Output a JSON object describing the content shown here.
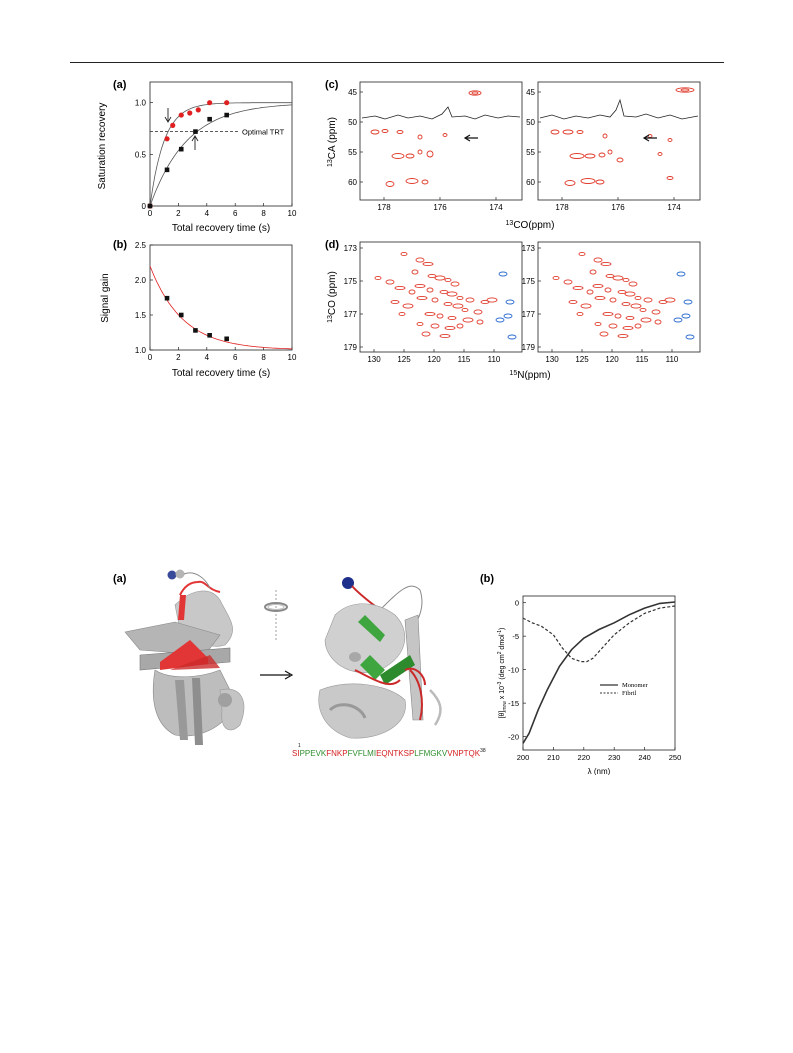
{
  "figure1": {
    "panel_a": {
      "label": "(a)",
      "ylabel": "Saturation recovery",
      "xlabel": "Total recovery time (s)",
      "optimal_label": "Optimal TRT",
      "x_ticks": [
        "0",
        "2",
        "4",
        "6",
        "8",
        "10"
      ],
      "y_ticks": [
        "0",
        "0.5",
        "1.0"
      ],
      "optimal_level": 0.72
    },
    "panel_b": {
      "label": "(b)",
      "ylabel": "Signal gain",
      "xlabel": "Total recovery time (s)",
      "x_ticks": [
        "0",
        "2",
        "4",
        "6",
        "8",
        "10"
      ],
      "y_ticks": [
        "1.0",
        "1.5",
        "2.0",
        "2.5"
      ]
    },
    "panel_c": {
      "label": "(c)",
      "ylabel": "CA (ppm)",
      "ylabel_sup": "13",
      "xlabel": "CO(ppm)",
      "xlabel_sup": "13",
      "x_ticks": [
        "178",
        "176",
        "174"
      ],
      "y_ticks": [
        "45",
        "50",
        "55",
        "60"
      ]
    },
    "panel_d": {
      "label": "(d)",
      "ylabel": "CO (ppm)",
      "ylabel_sup": "13",
      "xlabel": "N(ppm)",
      "xlabel_sup": "15",
      "x_ticks": [
        "130",
        "125",
        "120",
        "115",
        "110"
      ],
      "y_ticks": [
        "173",
        "175",
        "177",
        "179"
      ]
    }
  },
  "figure2": {
    "panel_a": {
      "label": "(a)",
      "sequence": [
        {
          "t": "S",
          "c": "#d42020"
        },
        {
          "t": "I",
          "c": "#d42020"
        },
        {
          "t": "PPEVK",
          "c": "#2f8f2f"
        },
        {
          "t": "FNKP",
          "c": "#d42020"
        },
        {
          "t": "FVFLMI",
          "c": "#2f8f2f"
        },
        {
          "t": "EQNTKSP",
          "c": "#d42020"
        },
        {
          "t": "LFMGKV",
          "c": "#2f8f2f"
        },
        {
          "t": "VNPTQK",
          "c": "#d42020"
        }
      ],
      "seq_start": "1",
      "seq_end": "38"
    },
    "panel_b": {
      "label": "(b)",
      "ylabel": "[θ]",
      "ylabel_sub": "mrw",
      "ylabel_mid": " x 10",
      "ylabel_sup": "-3",
      "ylabel_units": " (deg cm",
      "ylabel_sup2": "2",
      "ylabel_units2": " dmol",
      "ylabel_sup3": "-1",
      "ylabel_end": ")",
      "xlabel": "λ (nm)",
      "x_ticks": [
        "200",
        "210",
        "220",
        "230",
        "240",
        "250"
      ],
      "y_ticks": [
        "0",
        "-5",
        "-10",
        "-15",
        "-20"
      ],
      "legend": [
        "Monomer",
        "Fibril"
      ]
    }
  },
  "colors": {
    "red": "#e02020",
    "black": "#111111",
    "peak_red": "#e03a2a",
    "peak_blue": "#2f6fd0",
    "green": "#2f8f2f"
  },
  "chart_data": [
    {
      "type": "scatter",
      "title": "",
      "xlabel": "Total recovery time (s)",
      "ylabel": "Saturation recovery",
      "xlim": [
        0,
        10
      ],
      "ylim": [
        0,
        1.2
      ],
      "series": [
        {
          "color": "#e02020",
          "x": [
            0,
            1.2,
            1.6,
            2.2,
            2.8,
            3.4,
            4.2,
            5.4
          ],
          "y": [
            0,
            0.65,
            0.78,
            0.88,
            0.9,
            0.93,
            1.0,
            1.0
          ]
        },
        {
          "color": "#111111",
          "x": [
            0,
            1.2,
            2.2,
            3.2,
            4.2,
            5.4
          ],
          "y": [
            0,
            0.35,
            0.55,
            0.72,
            0.84,
            0.88
          ]
        }
      ]
    },
    {
      "type": "scatter",
      "title": "",
      "xlabel": "Total recovery time (s)",
      "ylabel": "Signal gain",
      "xlim": [
        0,
        10
      ],
      "ylim": [
        1.0,
        2.5
      ],
      "series": [
        {
          "color": "#111111",
          "x": [
            1.2,
            2.2,
            3.2,
            4.2,
            5.4
          ],
          "y": [
            1.74,
            1.5,
            1.28,
            1.21,
            1.16
          ]
        }
      ]
    },
    {
      "type": "line",
      "title": "",
      "xlabel": "λ (nm)",
      "ylabel": "[θ]mrw x 10-3 (deg cm2 dmol-1)",
      "xlim": [
        200,
        250
      ],
      "ylim": [
        -22,
        1
      ],
      "series": [
        {
          "name": "Monomer",
          "x": [
            200,
            202,
            205,
            208,
            212,
            216,
            220,
            225,
            230,
            235,
            240,
            245,
            250
          ],
          "y": [
            -21,
            -19.5,
            -16,
            -13,
            -9.5,
            -7,
            -5.3,
            -4,
            -3,
            -1.8,
            -0.8,
            -0.1,
            0.1
          ]
        },
        {
          "name": "Fibril",
          "x": [
            200,
            203,
            206,
            210,
            213,
            216,
            219,
            221,
            223,
            226,
            230,
            235,
            240,
            245,
            250
          ],
          "y": [
            -2.3,
            -3.0,
            -3.5,
            -4.8,
            -6.8,
            -8.3,
            -8.8,
            -8.8,
            -8.3,
            -6.8,
            -4.8,
            -3.0,
            -1.6,
            -0.8,
            -0.5
          ]
        }
      ]
    }
  ]
}
